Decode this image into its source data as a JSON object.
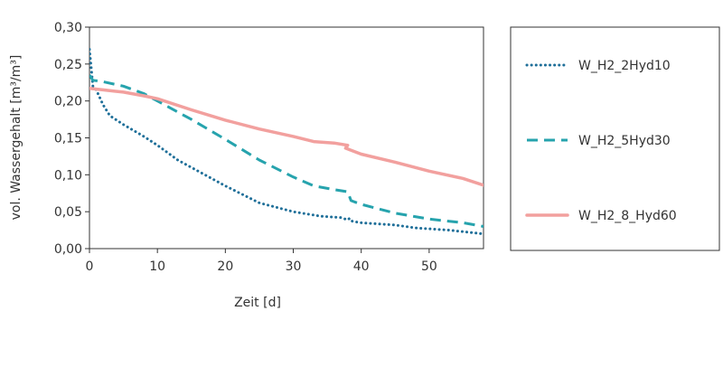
{
  "chart_data": {
    "type": "line",
    "xlabel": "Zeit [d]",
    "ylabel": "vol. Wassergehalt [m³/m³]",
    "xlim": [
      0,
      58
    ],
    "ylim": [
      0,
      0.3
    ],
    "x_ticks": [
      0,
      10,
      20,
      30,
      40,
      50
    ],
    "x_tick_labels": [
      "0",
      "10",
      "20",
      "30",
      "40",
      "50"
    ],
    "y_ticks": [
      0,
      0.05,
      0.1,
      0.15,
      0.2,
      0.25,
      0.3
    ],
    "y_tick_labels": [
      "0,00",
      "0,05",
      "0,10",
      "0,15",
      "0,20",
      "0,25",
      "0,30"
    ],
    "grid": false,
    "legend_position": "right",
    "series": [
      {
        "name": "W_H2_2Hyd10",
        "color": "#1f6f99",
        "style": "dotted",
        "points": [
          [
            0,
            0.27
          ],
          [
            0.5,
            0.22
          ],
          [
            1,
            0.215
          ],
          [
            2,
            0.195
          ],
          [
            3,
            0.18
          ],
          [
            5,
            0.168
          ],
          [
            8,
            0.152
          ],
          [
            10,
            0.14
          ],
          [
            13,
            0.12
          ],
          [
            16,
            0.105
          ],
          [
            20,
            0.085
          ],
          [
            25,
            0.062
          ],
          [
            30,
            0.05
          ],
          [
            34,
            0.044
          ],
          [
            37,
            0.042
          ],
          [
            38,
            0.039
          ],
          [
            38.3,
            0.041
          ],
          [
            38.7,
            0.037
          ],
          [
            40,
            0.035
          ],
          [
            45,
            0.032
          ],
          [
            48,
            0.028
          ],
          [
            53,
            0.025
          ],
          [
            58,
            0.02
          ]
        ]
      },
      {
        "name": "W_H2_5Hyd30",
        "color": "#26a3ad",
        "style": "dashed",
        "points": [
          [
            0,
            0.235
          ],
          [
            0.5,
            0.228
          ],
          [
            2,
            0.226
          ],
          [
            5,
            0.22
          ],
          [
            8,
            0.21
          ],
          [
            10,
            0.2
          ],
          [
            15,
            0.175
          ],
          [
            20,
            0.148
          ],
          [
            25,
            0.12
          ],
          [
            30,
            0.097
          ],
          [
            33,
            0.085
          ],
          [
            36,
            0.08
          ],
          [
            38,
            0.077
          ],
          [
            38.5,
            0.065
          ],
          [
            40,
            0.06
          ],
          [
            45,
            0.048
          ],
          [
            50,
            0.04
          ],
          [
            55,
            0.035
          ],
          [
            58,
            0.03
          ]
        ]
      },
      {
        "name": "W_H2_8_Hyd60",
        "color": "#f2a09e",
        "style": "solid",
        "points": [
          [
            0,
            0.217
          ],
          [
            2,
            0.215
          ],
          [
            5,
            0.212
          ],
          [
            8,
            0.207
          ],
          [
            10,
            0.203
          ],
          [
            15,
            0.188
          ],
          [
            20,
            0.174
          ],
          [
            25,
            0.162
          ],
          [
            30,
            0.152
          ],
          [
            33,
            0.145
          ],
          [
            36,
            0.143
          ],
          [
            38,
            0.14
          ],
          [
            37.7,
            0.136
          ],
          [
            38.3,
            0.134
          ],
          [
            40,
            0.128
          ],
          [
            45,
            0.117
          ],
          [
            50,
            0.105
          ],
          [
            55,
            0.095
          ],
          [
            58,
            0.086
          ]
        ]
      }
    ]
  }
}
